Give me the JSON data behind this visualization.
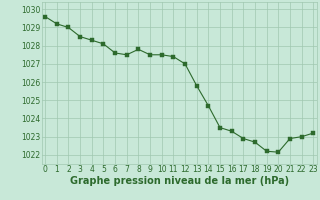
{
  "x": [
    0,
    1,
    2,
    3,
    4,
    5,
    6,
    7,
    8,
    9,
    10,
    11,
    12,
    13,
    14,
    15,
    16,
    17,
    18,
    19,
    20,
    21,
    22,
    23
  ],
  "y": [
    1029.6,
    1029.2,
    1029.0,
    1028.5,
    1028.3,
    1028.1,
    1027.6,
    1027.5,
    1027.8,
    1027.5,
    1027.5,
    1027.4,
    1027.0,
    1025.8,
    1024.7,
    1023.5,
    1023.3,
    1022.9,
    1022.7,
    1022.2,
    1022.15,
    1022.9,
    1023.0,
    1023.2
  ],
  "line_color": "#2d6a2d",
  "marker_color": "#2d6a2d",
  "bg_color": "#c8e8d8",
  "grid_color": "#a0c8b0",
  "xlabel": "Graphe pression niveau de la mer (hPa)",
  "yticks": [
    1022,
    1023,
    1024,
    1025,
    1026,
    1027,
    1028,
    1029,
    1030
  ],
  "xticks": [
    0,
    1,
    2,
    3,
    4,
    5,
    6,
    7,
    8,
    9,
    10,
    11,
    12,
    13,
    14,
    15,
    16,
    17,
    18,
    19,
    20,
    21,
    22,
    23
  ],
  "ylim": [
    1021.5,
    1030.4
  ],
  "xlim": [
    -0.3,
    23.3
  ],
  "tick_fontsize": 5.5,
  "xlabel_fontsize": 7.0
}
